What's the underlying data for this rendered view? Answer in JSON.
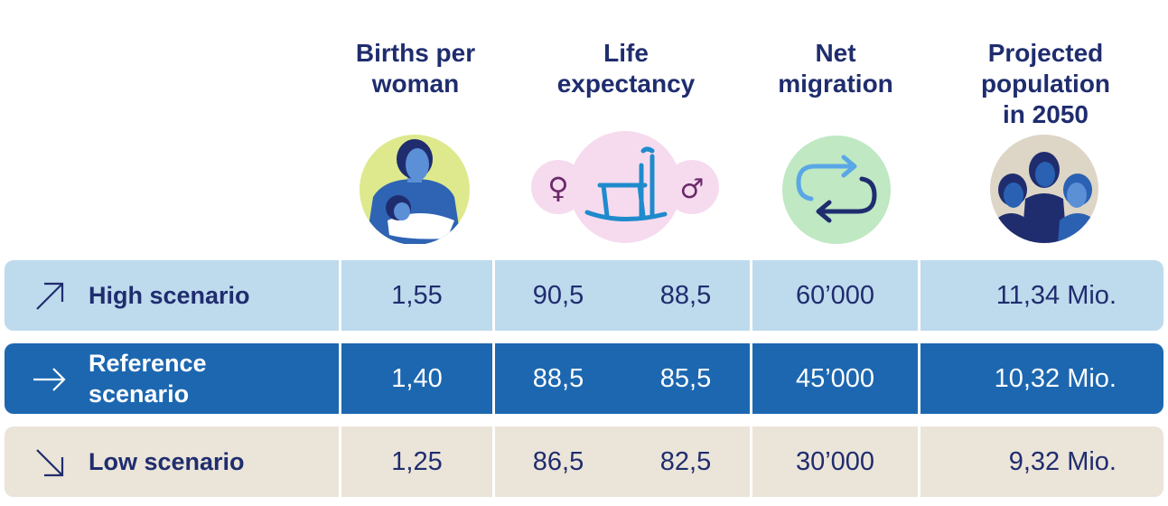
{
  "headers": {
    "births": "Births per\nwoman",
    "life": "Life\nexpectancy",
    "migration": "Net\nmigration",
    "population": "Projected\npopulation\nin 2050"
  },
  "icons": {
    "births": "mother-with-baby-icon",
    "life": "rocking-chair-icon",
    "female": "female-symbol-icon",
    "male": "male-symbol-icon",
    "migration": "loop-arrows-icon",
    "population": "group-of-people-icon",
    "female_glyph": "♀",
    "male_glyph": "♂"
  },
  "colors": {
    "title": "#1f2d6e",
    "high_row": "#bedaed",
    "reference_row": "#1c67b0",
    "low_row": "#ebe4d9"
  },
  "rows": [
    {
      "label": "High scenario",
      "arrow": "arrow-up-right-icon",
      "births": "1,55",
      "life_female": "90,5",
      "life_male": "88,5",
      "migration": "60’000",
      "population": "11,34 Mio."
    },
    {
      "label": "Reference\nscenario",
      "arrow": "arrow-right-icon",
      "births": "1,40",
      "life_female": "88,5",
      "life_male": "85,5",
      "migration": "45’000",
      "population": "10,32 Mio."
    },
    {
      "label": "Low scenario",
      "arrow": "arrow-down-right-icon",
      "births": "1,25",
      "life_female": "86,5",
      "life_male": "82,5",
      "migration": "30’000",
      "population": "9,32 Mio."
    }
  ]
}
